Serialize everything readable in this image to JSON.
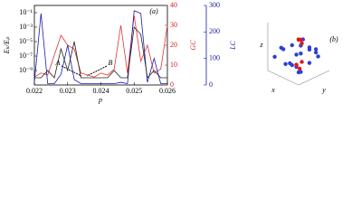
{
  "chart_data": [
    {
      "type": "line",
      "panel_label": "(a)",
      "xlabel": "p",
      "ylabel": "Eₖ/Eₚ",
      "y2label": "GC",
      "y3label": "LC",
      "annotations": [
        "A",
        "B"
      ],
      "log_y": true,
      "x": [
        0.022,
        0.0222,
        0.0224,
        0.0226,
        0.0228,
        0.023,
        0.0232,
        0.0234,
        0.0236,
        0.0238,
        0.024,
        0.0242,
        0.0244,
        0.0246,
        0.0248,
        0.025,
        0.0252,
        0.0254,
        0.0256,
        0.0258,
        0.026
      ],
      "xlim": [
        0.022,
        0.026
      ],
      "xticks": [
        0.022,
        0.023,
        0.024,
        0.025,
        0.026
      ],
      "ylim": [
        1e-11,
        1
      ],
      "yticks": [
        {
          "value": 0.1,
          "label": "10⁻¹"
        },
        {
          "value": 0.001,
          "label": "10⁻³"
        },
        {
          "value": 1e-05,
          "label": "10⁻⁵"
        },
        {
          "value": 1e-07,
          "label": "10⁻⁷"
        },
        {
          "value": 1e-09,
          "label": "10⁻⁹"
        }
      ],
      "y2lim": [
        0,
        40
      ],
      "y2ticks": [
        0,
        10,
        20,
        30,
        40
      ],
      "y2color": "#d62020",
      "y3lim": [
        0,
        300
      ],
      "y3ticks": [
        0,
        100,
        200,
        300
      ],
      "y3color": "#1a1aa8",
      "series": [
        {
          "color": "#e23030",
          "axis": "y2",
          "values": [
            4,
            6,
            5,
            15,
            25,
            20,
            18,
            6,
            5,
            4,
            6,
            5,
            8,
            30,
            6,
            35,
            12,
            20,
            6,
            8,
            30
          ]
        },
        {
          "color": "#1a1ab0",
          "axis": "y3",
          "values": [
            10,
            270,
            5,
            5,
            40,
            150,
            20,
            5,
            5,
            5,
            5,
            5,
            5,
            10,
            5,
            280,
            270,
            10,
            100,
            5,
            5
          ]
        },
        {
          "color": "#222222",
          "axis": "y",
          "values": [
            1e-10,
            1e-10,
            1e-09,
            1e-10,
            1e-06,
            1e-09,
            1e-05,
            1e-10,
            1e-10,
            1e-10,
            1e-10,
            1e-10,
            1e-09,
            1e-10,
            1e-10,
            0.001,
            0.0001,
            1e-10,
            1e-09,
            1e-10,
            1e-10
          ]
        }
      ]
    },
    {
      "type": "scatter3d",
      "panel_label": "(b)",
      "xlabel": "x",
      "ylabel": "y",
      "zlabel": "z",
      "series": [
        {
          "color": "#2b3fd6",
          "x": [
            -0.6,
            -0.4,
            -0.2,
            0,
            0.2,
            0.4,
            0.6,
            -0.5,
            -0.3,
            0.1,
            0.3,
            0.5,
            -0.1,
            0.2,
            0.4,
            -0.4,
            0,
            0.6,
            -0.2,
            0.3
          ],
          "y": [
            0.2,
            -0.3,
            0.5,
            -0.1,
            0.3,
            -0.4,
            0.1,
            0.6,
            -0.5,
            0.4,
            -0.2,
            0.5,
            -0.6,
            0.1,
            0.3,
            -0.1,
            0.6,
            -0.3,
            0.2,
            -0.5
          ],
          "z": [
            0.3,
            -0.2,
            0.5,
            0.1,
            -0.4,
            0.2,
            -0.1,
            0,
            0.6,
            -0.3,
            0.4,
            -0.5,
            0.2,
            0.7,
            -0.6,
            0.4,
            -0.2,
            0.1,
            -0.4,
            0.3
          ]
        },
        {
          "color": "#e01818",
          "x": [
            -0.5,
            -0.4,
            -0.3,
            0.2,
            0.3,
            0.4,
            -0.2,
            0.35
          ],
          "y": [
            -0.5,
            -0.4,
            -0.45,
            0.3,
            0.4,
            0.35,
            -0.3,
            0.2
          ],
          "z": [
            0.5,
            0.6,
            0.4,
            -0.3,
            -0.2,
            -0.4,
            0.7,
            -0.1
          ]
        }
      ]
    }
  ]
}
